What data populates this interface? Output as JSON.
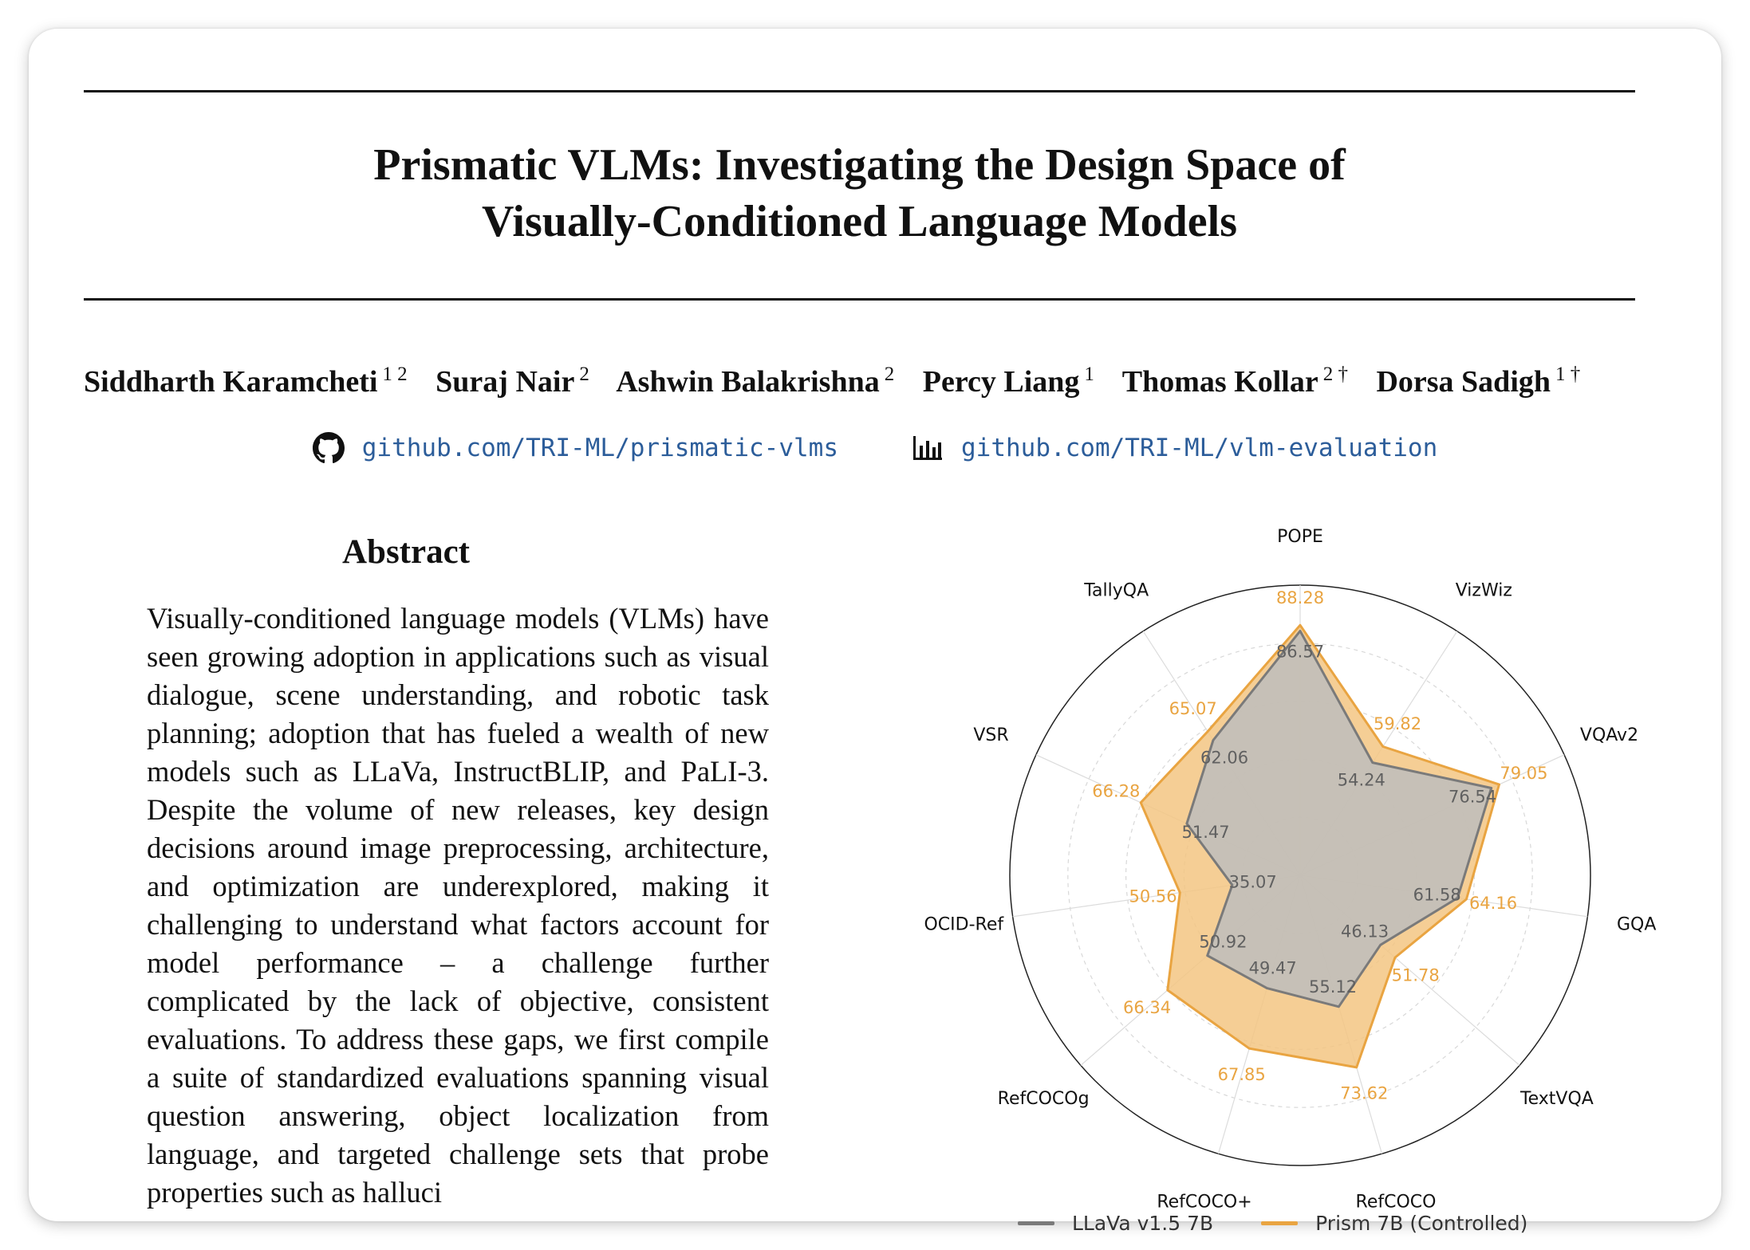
{
  "paper": {
    "title_lines": [
      "Prismatic VLMs: Investigating the Design Space of",
      "Visually-Conditioned Language Models"
    ],
    "authors": [
      {
        "name": "Siddharth Karamcheti",
        "aff": "1 2"
      },
      {
        "name": "Suraj Nair",
        "aff": "2"
      },
      {
        "name": "Ashwin Balakrishna",
        "aff": "2"
      },
      {
        "name": "Percy Liang",
        "aff": "1"
      },
      {
        "name": "Thomas Kollar",
        "aff": "2 †"
      },
      {
        "name": "Dorsa Sadigh",
        "aff": "1 †"
      }
    ],
    "links": [
      {
        "icon": "github-icon",
        "text": "github.com/TRI-ML/prismatic-vlms"
      },
      {
        "icon": "bar-chart-icon",
        "text": "github.com/TRI-ML/vlm-evaluation"
      }
    ],
    "abstract_heading": "Abstract",
    "abstract_text": "Visually-conditioned language models (VLMs) have seen growing adoption in applications such as visual dialogue, scene understanding, and robotic task planning; adoption that has fueled a wealth of new models such as LLaVa, Instruct­BLIP, and PaLI-3. Despite the volume of new re­leases, key design decisions around image prepro­cessing, architecture, and optimization are under­explored, making it challenging to understand what factors account for model performance – a challenge further complicated by the lack of ob­jective, consistent evaluations. To address these gaps, we first compile a suite of standardized eval­uations spanning visual question answering, ob­ject localization from language, and targeted chal­lenge sets that probe properties such as halluci­"
  },
  "chart_data": {
    "type": "radar",
    "axes": [
      "POPE",
      "VizWiz",
      "VQAv2",
      "GQA",
      "TextVQA",
      "RefCOCO",
      "RefCOCO+",
      "RefCOCOg",
      "OCID-Ref",
      "VSR",
      "TallyQA"
    ],
    "series": [
      {
        "name": "LLaVa v1.5 7B",
        "color": "#7a7a7a",
        "fill": "#bdbdbd",
        "values": [
          86.57,
          54.24,
          76.54,
          61.58,
          46.13,
          55.12,
          49.47,
          50.92,
          35.07,
          51.47,
          62.06
        ]
      },
      {
        "name": "Prism 7B (Controlled)",
        "color": "#e9a441",
        "fill": "#f3c683",
        "values": [
          88.28,
          59.82,
          79.05,
          64.16,
          51.78,
          73.62,
          67.85,
          66.34,
          50.56,
          66.28,
          65.07
        ]
      }
    ],
    "grid": true,
    "legend_position": "bottom"
  }
}
